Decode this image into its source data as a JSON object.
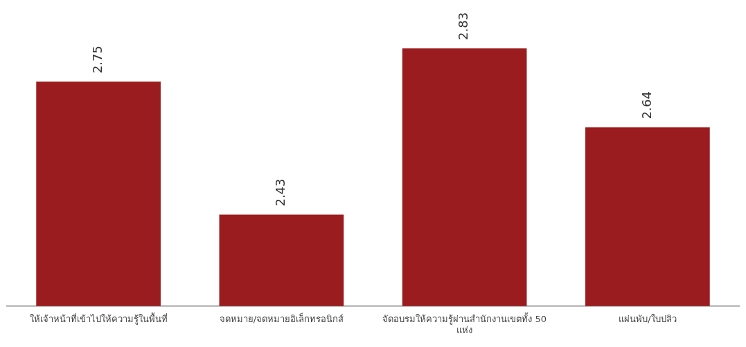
{
  "chart_data": {
    "type": "bar",
    "categories": [
      "ให้เจ้าหน้าที่เข้าไปให้ความรู้ในพื้นที่",
      "จดหมาย/จดหมายอิเล็กทรอนิกส์",
      "จัดอบรมให้ความรู้ผ่านสำนักงานเขตทั้ง 50 แห่ง",
      "แผ่นพับ/ใบปลิว"
    ],
    "values": [
      2.75,
      2.43,
      2.83,
      2.64
    ],
    "color": "#9b1c1f",
    "data_labels": true,
    "grid": false,
    "legend": false,
    "tick_labels": "x"
  }
}
